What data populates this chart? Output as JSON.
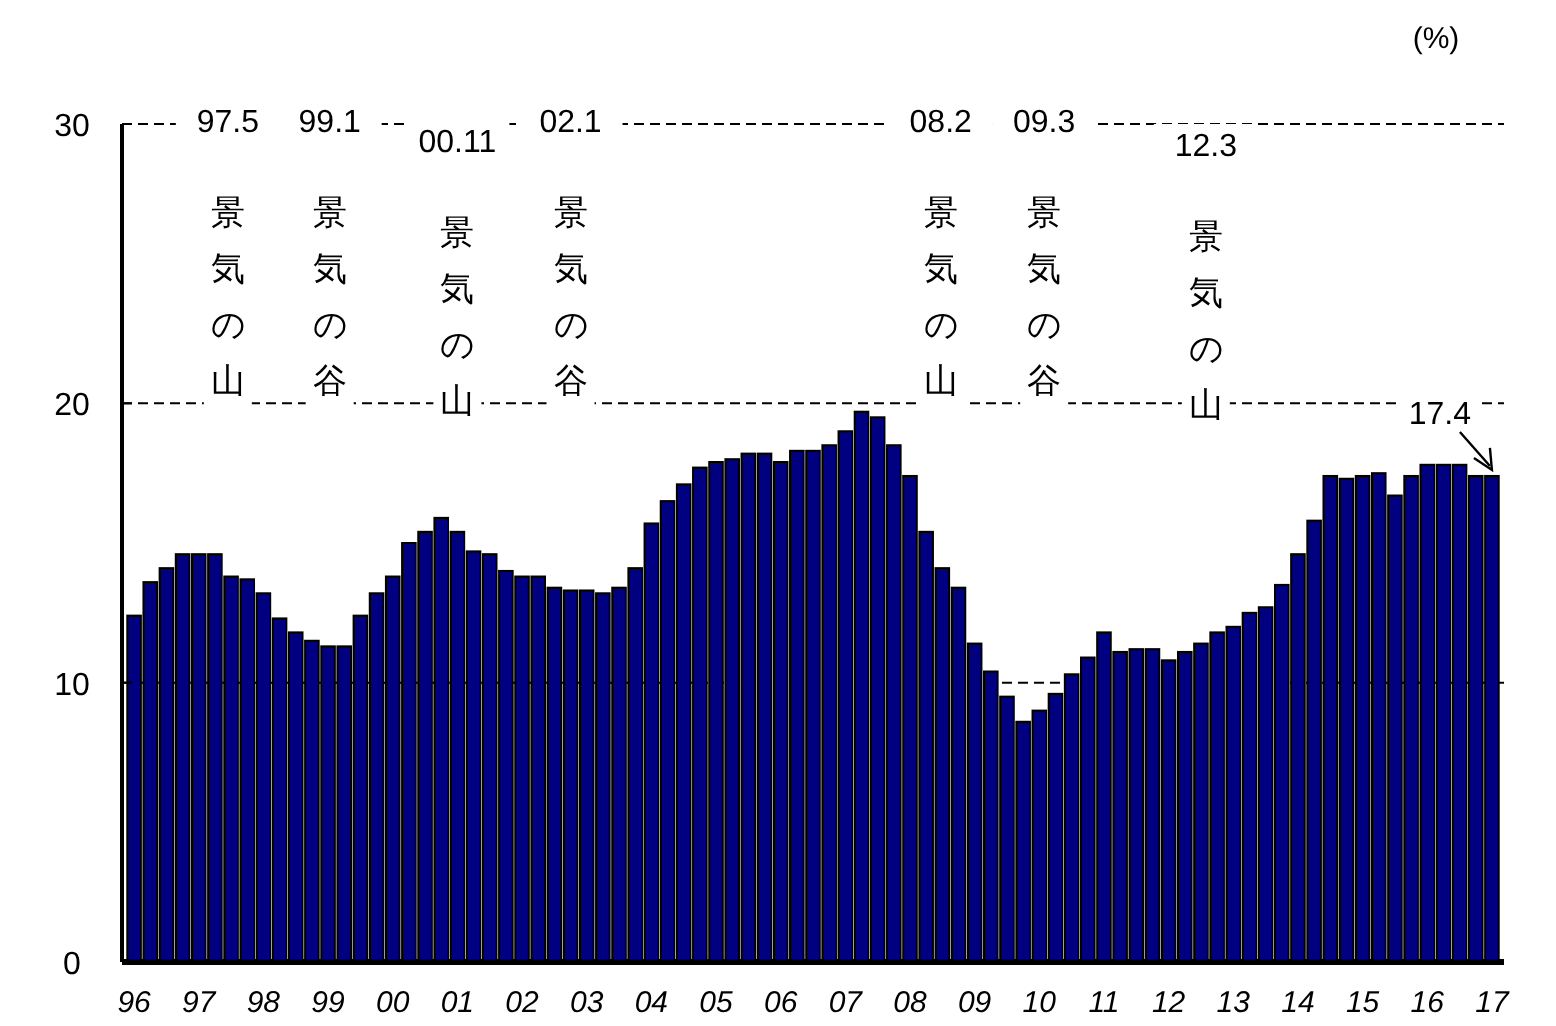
{
  "chart_data": {
    "type": "bar",
    "ylabel": "(%)",
    "categories": [
      "96",
      null,
      null,
      null,
      "97",
      null,
      null,
      null,
      "98",
      null,
      null,
      null,
      "99",
      null,
      null,
      null,
      "00",
      null,
      null,
      null,
      "01",
      null,
      null,
      null,
      "02",
      null,
      null,
      null,
      "03",
      null,
      null,
      null,
      "04",
      null,
      null,
      null,
      "05",
      null,
      null,
      null,
      "06",
      null,
      null,
      null,
      "07",
      null,
      null,
      null,
      "08",
      null,
      null,
      null,
      "09",
      null,
      null,
      null,
      "10",
      null,
      null,
      null,
      "11",
      null,
      null,
      null,
      "12",
      null,
      null,
      null,
      "13",
      null,
      null,
      null,
      "14",
      null,
      null,
      null,
      "15",
      null,
      null,
      null,
      "16",
      null,
      null,
      null,
      "17"
    ],
    "values": [
      12.4,
      13.6,
      14.1,
      14.6,
      14.6,
      14.6,
      13.8,
      13.7,
      13.2,
      12.3,
      11.8,
      11.5,
      11.3,
      11.3,
      12.4,
      13.2,
      13.8,
      15.0,
      15.4,
      15.9,
      15.4,
      14.7,
      14.6,
      14.0,
      13.8,
      13.8,
      13.4,
      13.3,
      13.3,
      13.2,
      13.4,
      14.1,
      15.7,
      16.5,
      17.1,
      17.7,
      17.9,
      18.0,
      18.2,
      18.2,
      17.9,
      18.3,
      18.3,
      18.5,
      19.0,
      19.7,
      19.5,
      18.5,
      17.4,
      15.4,
      14.1,
      13.4,
      11.4,
      10.4,
      9.5,
      8.6,
      9.0,
      9.6,
      10.3,
      10.9,
      11.8,
      11.1,
      11.2,
      11.2,
      10.8,
      11.1,
      11.4,
      11.8,
      12.0,
      12.5,
      12.7,
      13.5,
      14.6,
      15.8,
      17.4,
      17.3,
      17.4,
      17.5,
      16.7,
      17.4,
      17.8,
      17.8,
      17.8,
      17.4,
      17.4
    ],
    "color": "#000080",
    "ylim": [
      0,
      30
    ],
    "yticks": [
      0,
      10,
      20,
      30
    ],
    "grid": "y",
    "line_style": "dashed",
    "annotations": [
      "97.5",
      "景気の山",
      "99.1",
      "景気の谷",
      "00.11",
      "景気の山",
      "02.1",
      "景気の谷",
      "08.2",
      "景気の山",
      "09.3",
      "景気の谷",
      "12.3",
      "景気の山",
      {
        "text": "17.4",
        "x": "17",
        "y": 17.4
      }
    ]
  }
}
